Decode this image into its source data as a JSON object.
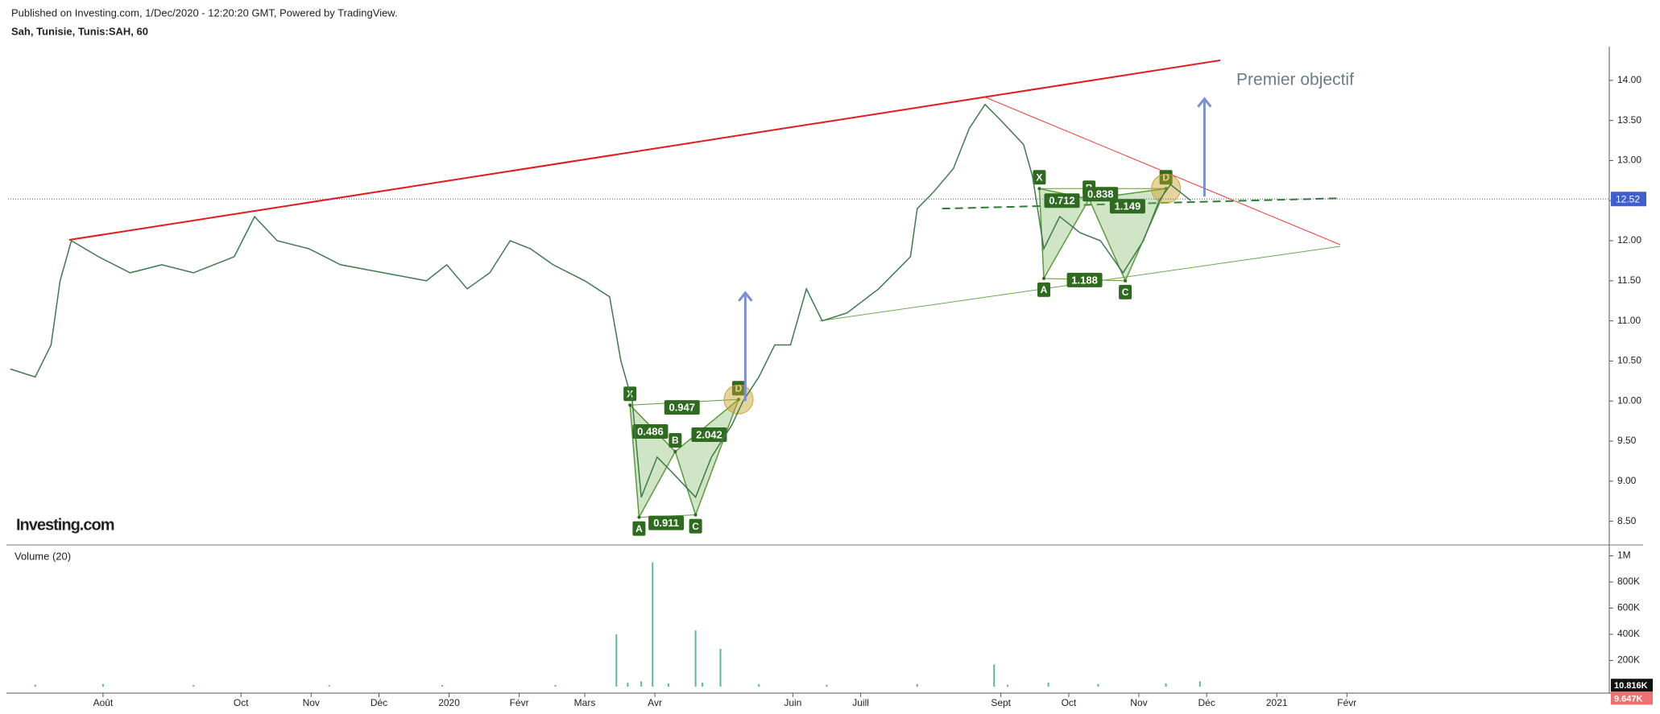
{
  "chart_data": [
    {
      "type": "line",
      "subtitle": "Published on Investing.com, 1/Dec/2020 - 12:20:20 GMT, Powered by TradingView.",
      "title": "Sah, Tunisie, Tunis:SAH, 60",
      "logo": "Investing.com",
      "color": "#3d7a4d",
      "x": [
        -41,
        -30,
        -23,
        -19,
        -14,
        -2,
        12,
        26,
        40,
        58,
        67,
        77,
        91,
        105,
        124,
        143,
        152,
        161,
        171,
        180,
        189,
        199,
        213,
        224,
        229,
        234,
        238,
        245,
        252,
        262,
        269,
        278,
        283,
        290,
        297,
        304,
        311,
        318,
        329,
        343,
        357,
        360,
        367,
        376,
        383,
        390,
        397,
        407,
        411,
        416,
        423,
        432,
        441,
        451,
        460,
        467,
        472,
        481
      ],
      "values": [
        10.4,
        10.3,
        10.7,
        11.5,
        12.0,
        11.8,
        11.6,
        11.7,
        11.6,
        11.8,
        12.3,
        12.0,
        11.9,
        11.7,
        11.6,
        11.5,
        11.7,
        11.4,
        11.6,
        12.0,
        11.9,
        11.7,
        11.5,
        11.3,
        10.5,
        10.0,
        8.8,
        9.3,
        9.1,
        8.8,
        9.3,
        9.7,
        10.0,
        10.3,
        10.7,
        10.7,
        11.4,
        11.0,
        11.1,
        11.4,
        11.8,
        12.4,
        12.6,
        12.9,
        13.4,
        13.7,
        13.5,
        13.2,
        12.8,
        11.9,
        12.3,
        12.1,
        12.0,
        11.6,
        12.0,
        12.5,
        12.7,
        12.5
      ],
      "xlim": [
        -42,
        666
      ],
      "xticks": [
        {
          "value": 0,
          "label": "Août"
        },
        {
          "value": 61,
          "label": "Oct"
        },
        {
          "value": 92,
          "label": "Nov"
        },
        {
          "value": 122,
          "label": "Déc"
        },
        {
          "value": 153,
          "label": "2020"
        },
        {
          "value": 184,
          "label": "Févr"
        },
        {
          "value": 213,
          "label": "Mars"
        },
        {
          "value": 244,
          "label": "Avr"
        },
        {
          "value": 305,
          "label": "Juin"
        },
        {
          "value": 335,
          "label": "Juill"
        },
        {
          "value": 397,
          "label": "Sept"
        },
        {
          "value": 427,
          "label": "Oct"
        },
        {
          "value": 458,
          "label": "Nov"
        },
        {
          "value": 488,
          "label": "Déc"
        },
        {
          "value": 519,
          "label": "2021"
        },
        {
          "value": 550,
          "label": "Févr"
        }
      ],
      "ylim": [
        8.235,
        14.42
      ],
      "yticks": [
        {
          "value": 8.5,
          "label": "8.50"
        },
        {
          "value": 9,
          "label": "9.00"
        },
        {
          "value": 9.5,
          "label": "9.50"
        },
        {
          "value": 10,
          "label": "10.00"
        },
        {
          "value": 10.5,
          "label": "10.50"
        },
        {
          "value": 11,
          "label": "11.00"
        },
        {
          "value": 11.5,
          "label": "11.50"
        },
        {
          "value": 12,
          "label": "12.00"
        },
        {
          "value": 12.5,
          "label": "12.50"
        },
        {
          "value": 13,
          "label": "13.00"
        },
        {
          "value": 13.5,
          "label": "13.50"
        },
        {
          "value": 14,
          "label": "14.00"
        }
      ],
      "last_price": {
        "value": 12.52,
        "label": "12.52",
        "color": "#3d5fcf"
      },
      "trendlines": [
        {
          "color": "#e31a1c",
          "width": 2,
          "x": [
            -15,
            494
          ],
          "y": [
            12.01,
            14.25
          ]
        },
        {
          "color": "#f03a3a",
          "width": 1,
          "x": [
            390,
            547
          ],
          "y": [
            13.79,
            11.95
          ]
        },
        {
          "color": "#6aa84f",
          "width": 1,
          "x": [
            317,
            547
          ],
          "y": [
            11.0,
            11.93
          ]
        },
        {
          "color": "#2e7d32",
          "width": 2,
          "dashed": true,
          "x": [
            371,
            547
          ],
          "y": [
            12.4,
            12.53
          ]
        }
      ],
      "arrows": [
        {
          "color": "#7b8fd1",
          "x": 284,
          "y": [
            10.0,
            11.35
          ]
        },
        {
          "color": "#7b8fd1",
          "x": 487,
          "y": [
            12.55,
            13.77
          ]
        }
      ],
      "annotation": {
        "text": "Premier objectif",
        "x": 494,
        "y": 14.0,
        "color": "#6b7d8c"
      },
      "patterns": [
        {
          "points": [
            {
              "label": "X",
              "x": 233,
              "y": 9.95
            },
            {
              "label": "A",
              "x": 237,
              "y": 8.55
            },
            {
              "label": "B",
              "x": 253,
              "y": 9.37
            },
            {
              "label": "C",
              "x": 262,
              "y": 8.58
            },
            {
              "label": "D",
              "x": 281,
              "y": 10.02
            }
          ],
          "ratios": [
            {
              "text": "0.486",
              "x": 242,
              "y": 9.62
            },
            {
              "text": "0.911",
              "x": 249,
              "y": 8.48
            },
            {
              "text": "2.042",
              "x": 268,
              "y": 9.58
            },
            {
              "text": "0.947",
              "x": 256,
              "y": 9.92
            }
          ]
        },
        {
          "points": [
            {
              "label": "X",
              "x": 414,
              "y": 12.65
            },
            {
              "label": "A",
              "x": 416,
              "y": 11.53
            },
            {
              "label": "B",
              "x": 436,
              "y": 12.52
            },
            {
              "label": "C",
              "x": 452,
              "y": 11.5
            },
            {
              "label": "D",
              "x": 470,
              "y": 12.65
            }
          ],
          "ratios": [
            {
              "text": "0.712",
              "x": 424,
              "y": 12.5
            },
            {
              "text": "0.838",
              "x": 441,
              "y": 12.58
            },
            {
              "text": "1.149",
              "x": 453,
              "y": 12.43
            },
            {
              "text": "1.188",
              "x": 434,
              "y": 11.51
            }
          ]
        }
      ]
    },
    {
      "type": "bar",
      "title": "Volume (20)",
      "color": "#5bb89a",
      "x": [
        -30,
        0,
        40,
        100,
        150,
        200,
        227,
        232,
        238,
        243,
        250,
        262,
        265,
        273,
        290,
        320,
        360,
        394,
        400,
        418,
        440,
        470,
        485
      ],
      "values": [
        15000,
        20000,
        12000,
        10000,
        12000,
        14000,
        400000,
        30000,
        40000,
        950000,
        25000,
        430000,
        30000,
        290000,
        20000,
        15000,
        20000,
        170000,
        15000,
        30000,
        20000,
        25000,
        40000
      ],
      "ylim": [
        0,
        1065000
      ],
      "yticks": [
        {
          "value": 200000,
          "label": "200K"
        },
        {
          "value": 400000,
          "label": "400K"
        },
        {
          "value": 600000,
          "label": "600K"
        },
        {
          "value": 800000,
          "label": "800K"
        },
        {
          "value": 1000000,
          "label": "1M"
        }
      ],
      "current_labels": [
        {
          "value": 10816,
          "label": "10.816K",
          "color": "#111111"
        },
        {
          "value": 9647,
          "label": "9.647K",
          "color": "#f07070"
        }
      ]
    }
  ]
}
